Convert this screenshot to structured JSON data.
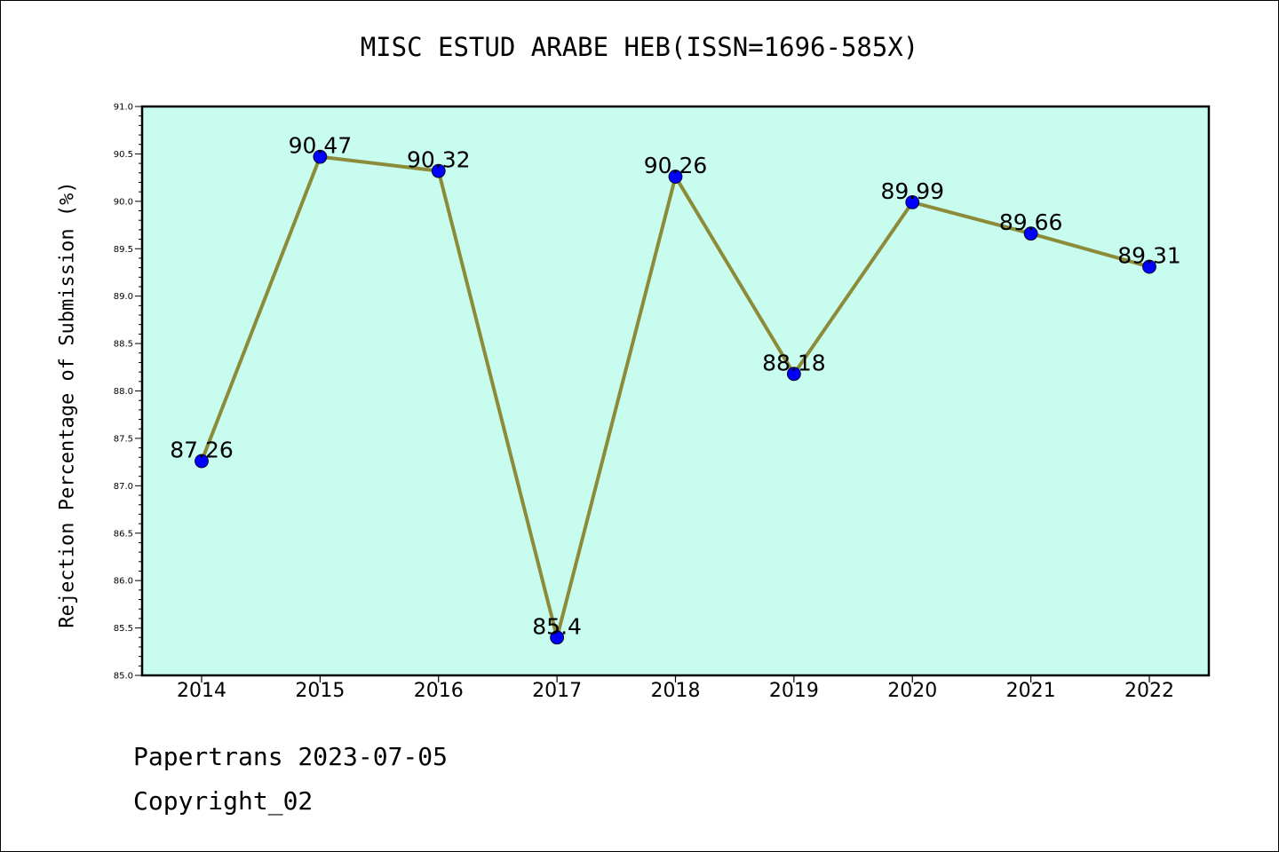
{
  "page": {
    "footer_line1": "Papertrans 2023-07-05",
    "footer_line2": "Copyright_02"
  },
  "chart_data": {
    "type": "line",
    "title": "MISC ESTUD ARABE HEB(ISSN=1696-585X)",
    "xlabel": "",
    "ylabel": "Rejection Percentage of Submission (%)",
    "categories": [
      "2014",
      "2015",
      "2016",
      "2017",
      "2018",
      "2019",
      "2020",
      "2021",
      "2022"
    ],
    "series": [
      {
        "values": [
          87.26,
          90.47,
          90.32,
          85.4,
          90.26,
          88.18,
          89.99,
          89.66,
          89.31
        ],
        "labels": [
          "87.26",
          "90.47",
          "90.32",
          "85.4",
          "90.26",
          "88.18",
          "89.99",
          "89.66",
          "89.31"
        ],
        "line_color": "#8B8B3A",
        "marker_color": "#0000FF"
      }
    ],
    "ylim": [
      85.0,
      91.0
    ],
    "yticks": [
      "85.0",
      "85.5",
      "86.0",
      "86.5",
      "87.0",
      "87.5",
      "88.0",
      "88.5",
      "89.0",
      "89.5",
      "90.0",
      "90.5",
      "91.0"
    ],
    "plot_background": "#C8FCEE",
    "grid": false,
    "legend": "none"
  }
}
